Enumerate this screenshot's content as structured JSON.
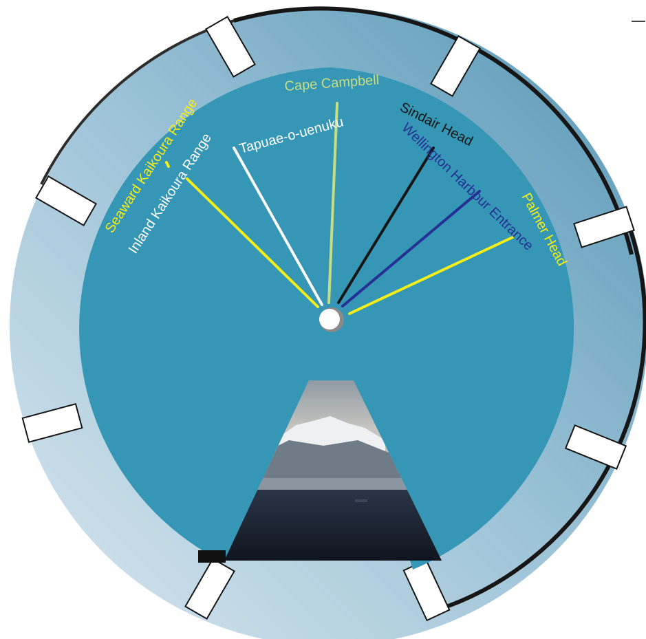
{
  "colors": {
    "disc": "#3596b5",
    "ring_light": "#c8dde9",
    "ring_dark": "#5d9ab8",
    "rim": "#161616",
    "hub": "#ffffff",
    "sky": "#aab3ba",
    "sea": "#1c2533"
  },
  "labels": [
    {
      "name": "Seaward Kaikoura Range",
      "text": "Seaward Kaikoura Range",
      "color": "#f5ee18"
    },
    {
      "name": "Inland Kaikoura Range",
      "text": "Inland Kaikoura Range",
      "color": "#ffffff"
    },
    {
      "name": "Tapuae-o-uenuku",
      "text": "Tapuae-o-uenuku",
      "color": "#ffffff"
    },
    {
      "name": "Cape Campbell",
      "text": "Cape Campbell",
      "color": "#c6de83"
    },
    {
      "name": "Sindair Head",
      "text": "Sindair Head",
      "color": "#151515"
    },
    {
      "name": "Wellington Harbour Entrance",
      "text": "Wellington Harbour Entrance",
      "color": "#253094"
    },
    {
      "name": "Palmer Head",
      "text": "Palmer Head",
      "color": "#f5ee18"
    }
  ],
  "window": {
    "minimize_icon": "minimize-icon"
  }
}
